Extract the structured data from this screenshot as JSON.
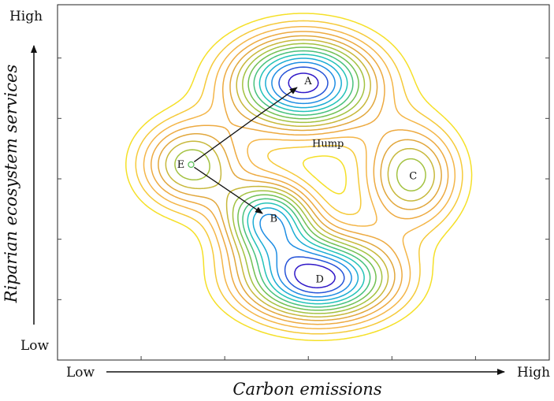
{
  "chart_data": {
    "type": "contour",
    "title": "",
    "xlabel": "Carbon emissions",
    "ylabel": "Riparian ecosystem services",
    "x_low_label": "Low",
    "x_high_label": "High",
    "y_low_label": "Low",
    "y_high_label": "High",
    "xlim": [
      0,
      1
    ],
    "ylim": [
      0,
      1
    ],
    "levels": 14,
    "colormap": [
      "#3018c8",
      "#1e88e5",
      "#19c3c9",
      "#5cc05a",
      "#b8c23a",
      "#e8a23c",
      "#f5b84a",
      "#f5e028"
    ],
    "peaks": [
      {
        "label": "A",
        "x": 0.5,
        "y": 0.78,
        "strength": 1.0
      },
      {
        "label": "B",
        "x": 0.43,
        "y": 0.4,
        "strength": 0.75
      },
      {
        "label": "C",
        "x": 0.72,
        "y": 0.52,
        "strength": 0.55
      },
      {
        "label": "D",
        "x": 0.53,
        "y": 0.23,
        "strength": 1.0
      },
      {
        "label": "E",
        "x": 0.27,
        "y": 0.55,
        "strength": 0.55
      }
    ],
    "annotations": [
      {
        "text": "Hump",
        "x": 0.55,
        "y": 0.6
      }
    ],
    "arrows": [
      {
        "from": "E",
        "to": "A"
      },
      {
        "from": "E",
        "to": "B"
      }
    ]
  }
}
